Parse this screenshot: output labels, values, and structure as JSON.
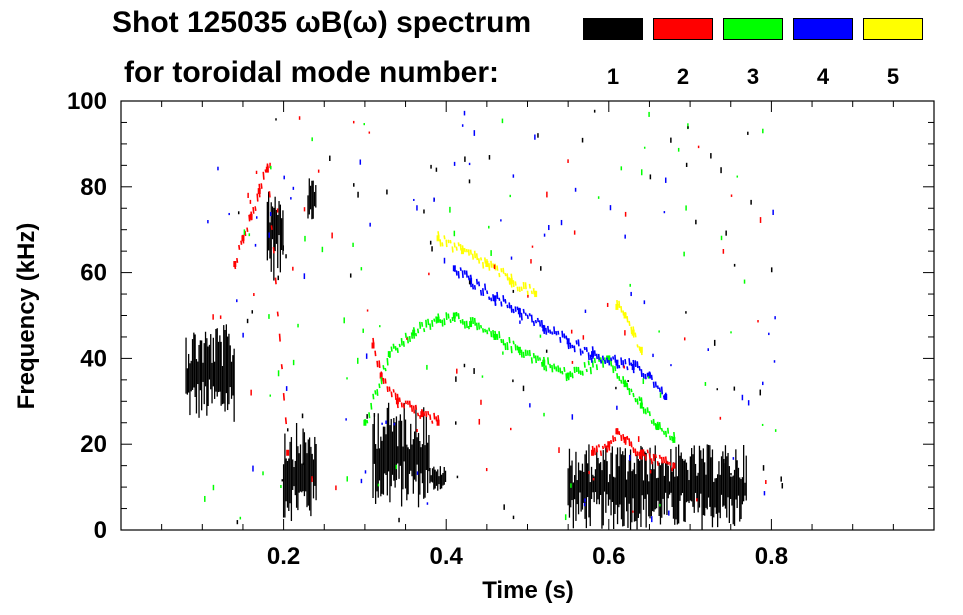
{
  "header": {
    "title_line1": "Shot 125035 ωB(ω) spectrum",
    "title_line2": "for toroidal mode number:"
  },
  "legend": [
    {
      "label": "1",
      "color": "#000000"
    },
    {
      "label": "2",
      "color": "#ff0000"
    },
    {
      "label": "3",
      "color": "#00ff00"
    },
    {
      "label": "4",
      "color": "#0000ff"
    },
    {
      "label": "5",
      "color": "#ffff00"
    }
  ],
  "chart_data": {
    "type": "heatmap",
    "title": "Shot 125035 ωB(ω) spectrum",
    "xlabel": "Time (s)",
    "ylabel": "Frequency (kHz)",
    "xlim": [
      0.0,
      1.0
    ],
    "ylim": [
      0,
      100
    ],
    "xticks": [
      0.2,
      0.4,
      0.6,
      0.8
    ],
    "xtick_labels": [
      "0.2",
      "0.4",
      "0.6",
      "0.8"
    ],
    "yticks": [
      0,
      20,
      40,
      60,
      80,
      100
    ],
    "ytick_labels": [
      "0",
      "20",
      "40",
      "60",
      "80",
      "100"
    ],
    "series": [
      {
        "name": "n=1",
        "color": "#000000",
        "regions": [
          {
            "t": [
              0.08,
              0.14
            ],
            "f": [
              25,
              48
            ]
          },
          {
            "t": [
              0.18,
              0.2
            ],
            "f": [
              58,
              82
            ]
          },
          {
            "t": [
              0.2,
              0.24
            ],
            "f": [
              2,
              25
            ]
          },
          {
            "t": [
              0.23,
              0.24
            ],
            "f": [
              72,
              82
            ]
          },
          {
            "t": [
              0.31,
              0.38
            ],
            "f": [
              5,
              30
            ]
          },
          {
            "t": [
              0.38,
              0.4
            ],
            "f": [
              9,
              15
            ]
          },
          {
            "t": [
              0.55,
              0.77
            ],
            "f": [
              0,
              20
            ]
          }
        ]
      },
      {
        "name": "n=2",
        "color": "#ff0000",
        "points": [
          [
            0.14,
            62
          ],
          [
            0.15,
            68
          ],
          [
            0.16,
            73
          ],
          [
            0.17,
            79
          ],
          [
            0.18,
            84
          ],
          [
            0.205,
            18
          ],
          [
            0.31,
            43
          ],
          [
            0.32,
            36
          ],
          [
            0.34,
            30
          ],
          [
            0.37,
            27
          ],
          [
            0.39,
            25
          ],
          [
            0.58,
            18
          ],
          [
            0.6,
            20
          ],
          [
            0.61,
            23
          ],
          [
            0.62,
            21
          ],
          [
            0.64,
            18
          ],
          [
            0.68,
            15
          ]
        ]
      },
      {
        "name": "n=3",
        "color": "#00ff00",
        "points": [
          [
            0.3,
            25
          ],
          [
            0.33,
            41
          ],
          [
            0.36,
            46
          ],
          [
            0.39,
            49
          ],
          [
            0.41,
            50
          ],
          [
            0.43,
            48
          ],
          [
            0.46,
            45
          ],
          [
            0.49,
            42
          ],
          [
            0.52,
            39
          ],
          [
            0.55,
            36
          ],
          [
            0.6,
            40
          ],
          [
            0.62,
            34
          ],
          [
            0.64,
            29
          ],
          [
            0.66,
            24
          ],
          [
            0.68,
            21
          ]
        ]
      },
      {
        "name": "n=4",
        "color": "#0000ff",
        "points": [
          [
            0.41,
            61
          ],
          [
            0.43,
            58
          ],
          [
            0.46,
            54
          ],
          [
            0.49,
            51
          ],
          [
            0.52,
            47
          ],
          [
            0.55,
            44
          ],
          [
            0.58,
            41
          ],
          [
            0.61,
            39
          ],
          [
            0.63,
            38
          ],
          [
            0.65,
            36
          ],
          [
            0.67,
            31
          ]
        ]
      },
      {
        "name": "n=5",
        "color": "#ffff00",
        "points": [
          [
            0.39,
            68
          ],
          [
            0.42,
            65
          ],
          [
            0.45,
            62
          ],
          [
            0.48,
            58
          ],
          [
            0.51,
            55
          ],
          [
            0.61,
            52
          ],
          [
            0.62,
            50
          ],
          [
            0.63,
            46
          ],
          [
            0.64,
            42
          ]
        ]
      }
    ]
  }
}
